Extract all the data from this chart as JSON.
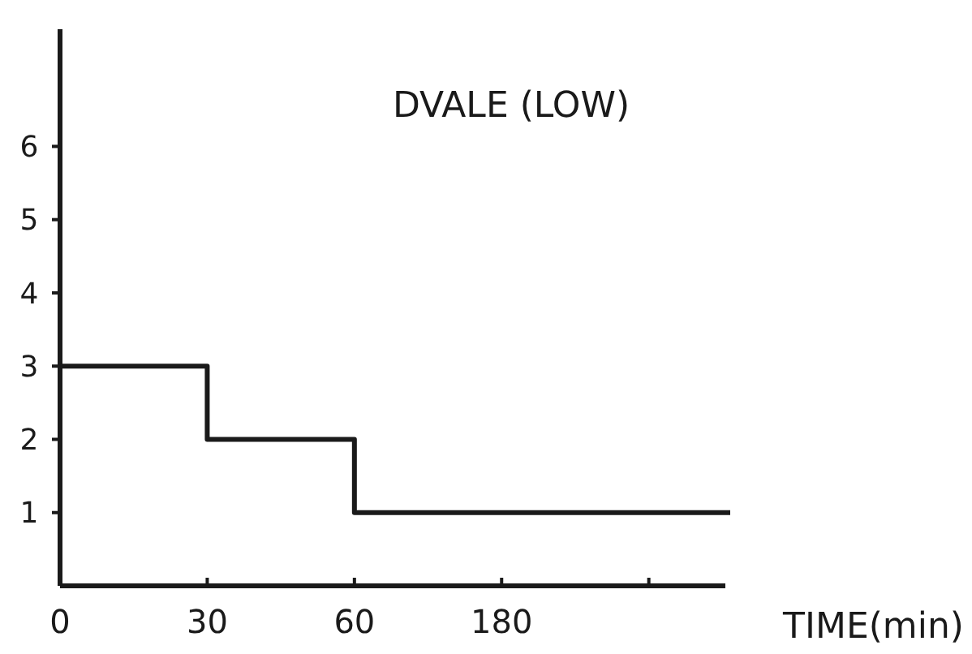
{
  "chart_data": {
    "type": "step",
    "title": "DVALE (LOW)",
    "xlabel": "TIME(min)",
    "categories": [
      "0",
      "30",
      "60",
      "180",
      null
    ],
    "values": [
      3,
      2,
      1,
      1,
      1
    ],
    "color": "#1a1a1a",
    "ylim": [
      0,
      7.6
    ],
    "yticks": [
      1,
      2,
      3,
      4,
      5,
      6
    ],
    "grid": false,
    "marker": "none",
    "line_style": "solid"
  }
}
